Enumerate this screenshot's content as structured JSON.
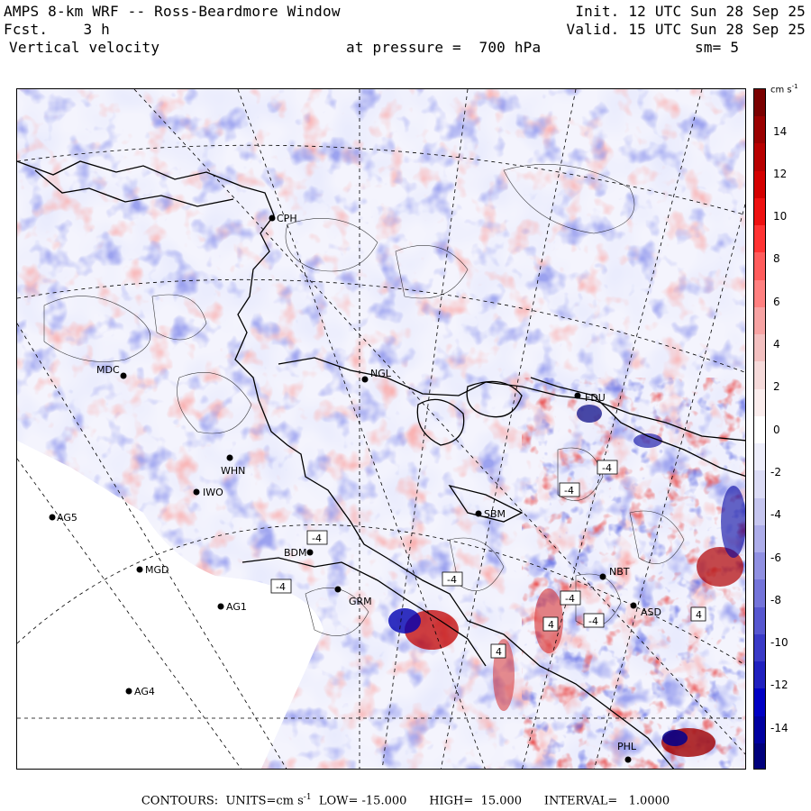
{
  "header": {
    "title": "AMPS 8-km WRF -- Ross-Beardmore Window",
    "forecast": "Fcst.    3 h",
    "field": "Vertical velocity",
    "init": "Init. 12 UTC Sun 28 Sep 25",
    "valid": "Valid. 15 UTC Sun 28 Sep 25",
    "pressure": "at pressure =  700 hPa",
    "smoothing": "sm= 5"
  },
  "colorbar": {
    "unit": "cm s",
    "unit_exp": "-1",
    "ticks": [
      "14",
      "12",
      "10",
      "8",
      "6",
      "4",
      "2",
      "0",
      "-2",
      "-4",
      "-6",
      "-8",
      "-10",
      "-12",
      "-14"
    ],
    "colors": [
      "#7a0000",
      "#9a0000",
      "#b80000",
      "#d40000",
      "#ee1111",
      "#ff3333",
      "#ff5c5c",
      "#ff8080",
      "#f7a3a3",
      "#f3c0c0",
      "#f6dada",
      "#fbeded",
      "#ffffff",
      "#eeeefb",
      "#dcdcf6",
      "#c6c6f0",
      "#adadea",
      "#9090e2",
      "#7474da",
      "#5757d0",
      "#3a3ac7",
      "#2020bf",
      "#0000c4",
      "#0000a0",
      "#00007c"
    ]
  },
  "stations": [
    {
      "code": "CPH"
    },
    {
      "code": "MDC"
    },
    {
      "code": "NGL"
    },
    {
      "code": "FDU"
    },
    {
      "code": "WHN"
    },
    {
      "code": "IWO"
    },
    {
      "code": "AG5"
    },
    {
      "code": "SBM"
    },
    {
      "code": "BDM"
    },
    {
      "code": "MGD"
    },
    {
      "code": "NBT"
    },
    {
      "code": "GRM"
    },
    {
      "code": "AG1"
    },
    {
      "code": "ASD"
    },
    {
      "code": "AG4"
    },
    {
      "code": "PHL"
    }
  ],
  "contour_labels": [
    "-4",
    "-4",
    "-4",
    "-4",
    "-4",
    "-4",
    "-4",
    "4",
    "4",
    "4"
  ],
  "footer": {
    "prefix": "CONTOURS:  UNITS=cm s",
    "unit_exp": "-1",
    "stats": "  LOW= -15.000      HIGH=  15.000      INTERVAL=   1.0000"
  }
}
